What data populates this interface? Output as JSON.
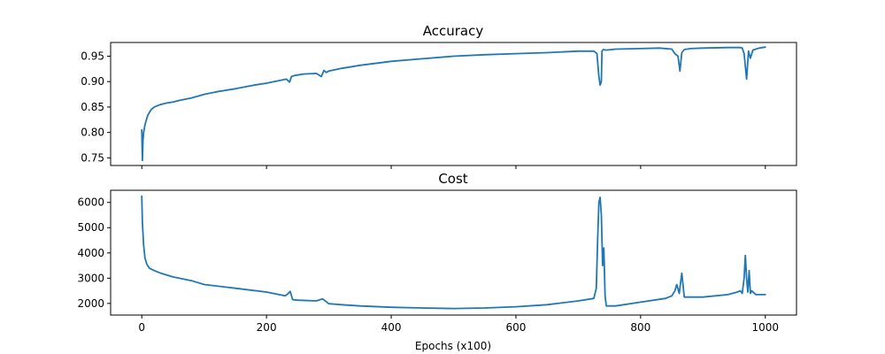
{
  "chart_data": [
    {
      "type": "line",
      "title": "Accuracy",
      "xlabel": "",
      "ylabel": "",
      "xlim": [
        -50,
        1050
      ],
      "ylim": [
        0.735,
        0.977
      ],
      "xticks": [
        0,
        200,
        400,
        600,
        800,
        1000
      ],
      "xtick_labels": [],
      "yticks": [
        0.75,
        0.8,
        0.85,
        0.9,
        0.95
      ],
      "ytick_labels": [
        "0.75",
        "0.80",
        "0.85",
        "0.90",
        "0.95"
      ],
      "grid": false,
      "color": "#1f77b4",
      "series": [
        {
          "x": [
            0,
            1,
            2,
            3,
            5,
            8,
            10,
            15,
            20,
            30,
            40,
            50,
            60,
            80,
            100,
            120,
            150,
            180,
            200,
            220,
            232,
            237,
            240,
            245,
            260,
            280,
            288,
            292,
            296,
            300,
            320,
            350,
            400,
            450,
            500,
            550,
            600,
            650,
            700,
            725,
            730,
            733,
            735,
            737,
            738,
            740,
            745,
            760,
            800,
            830,
            850,
            855,
            860,
            863,
            866,
            870,
            880,
            900,
            940,
            955,
            960,
            963,
            966,
            970,
            973,
            976,
            980,
            990,
            1000
          ],
          "y": [
            0.805,
            0.745,
            0.785,
            0.8,
            0.815,
            0.828,
            0.835,
            0.845,
            0.85,
            0.855,
            0.858,
            0.86,
            0.863,
            0.868,
            0.875,
            0.88,
            0.886,
            0.893,
            0.897,
            0.902,
            0.905,
            0.899,
            0.91,
            0.912,
            0.915,
            0.916,
            0.91,
            0.922,
            0.918,
            0.921,
            0.926,
            0.932,
            0.94,
            0.945,
            0.95,
            0.953,
            0.955,
            0.957,
            0.96,
            0.96,
            0.955,
            0.91,
            0.893,
            0.9,
            0.96,
            0.963,
            0.962,
            0.964,
            0.965,
            0.966,
            0.964,
            0.955,
            0.95,
            0.921,
            0.957,
            0.963,
            0.965,
            0.966,
            0.967,
            0.967,
            0.967,
            0.966,
            0.955,
            0.905,
            0.96,
            0.946,
            0.962,
            0.966,
            0.968
          ]
        }
      ]
    },
    {
      "type": "line",
      "title": "Cost",
      "xlabel": "Epochs (x100)",
      "ylabel": "",
      "xlim": [
        -50,
        1050
      ],
      "ylim": [
        1540,
        6480
      ],
      "xticks": [
        0,
        200,
        400,
        600,
        800,
        1000
      ],
      "xtick_labels": [
        "0",
        "200",
        "400",
        "600",
        "800",
        "1000"
      ],
      "yticks": [
        2000,
        3000,
        4000,
        5000,
        6000
      ],
      "ytick_labels": [
        "2000",
        "3000",
        "4000",
        "5000",
        "6000"
      ],
      "grid": false,
      "color": "#1f77b4",
      "series": [
        {
          "x": [
            0,
            1,
            3,
            5,
            8,
            12,
            20,
            30,
            50,
            80,
            100,
            150,
            200,
            230,
            235,
            238,
            242,
            250,
            280,
            290,
            300,
            320,
            350,
            400,
            450,
            500,
            550,
            600,
            650,
            700,
            725,
            729,
            731,
            733,
            735,
            737,
            739,
            741,
            743,
            745,
            760,
            800,
            840,
            850,
            855,
            858,
            862,
            866,
            870,
            900,
            940,
            955,
            960,
            963,
            966,
            968,
            970,
            972,
            974,
            976,
            978,
            985,
            1000
          ],
          "y": [
            6250,
            5200,
            4300,
            3800,
            3550,
            3400,
            3300,
            3200,
            3050,
            2900,
            2750,
            2600,
            2450,
            2300,
            2400,
            2480,
            2150,
            2130,
            2100,
            2180,
            1990,
            1950,
            1900,
            1850,
            1820,
            1800,
            1820,
            1870,
            1950,
            2100,
            2200,
            2600,
            4500,
            6000,
            6200,
            5500,
            3500,
            4200,
            2300,
            1900,
            1900,
            2050,
            2200,
            2300,
            2500,
            2750,
            2400,
            3200,
            2250,
            2250,
            2350,
            2450,
            2500,
            2400,
            3000,
            3900,
            3000,
            2450,
            3300,
            2400,
            2500,
            2350,
            2350
          ]
        }
      ]
    }
  ]
}
